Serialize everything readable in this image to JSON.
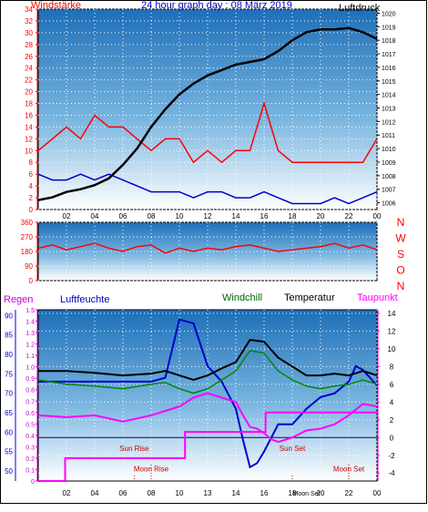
{
  "panels": {
    "wind": {
      "title": "24 hour graph day : 08 März 2019",
      "left_label": "Windstärke",
      "right_label": "Luftdruck",
      "left_ticks": [
        "0",
        "2",
        "4",
        "6",
        "8",
        "10",
        "12",
        "14",
        "16",
        "18",
        "20",
        "22",
        "24",
        "26",
        "28",
        "30",
        "32",
        "34"
      ],
      "right_ticks": [
        "1006",
        "1007",
        "1008",
        "1009",
        "1010",
        "1011",
        "1012",
        "1013",
        "1014",
        "1015",
        "1016",
        "1017",
        "1018",
        "1019",
        "1020"
      ],
      "x_ticks": [
        "02",
        "04",
        "06",
        "08",
        "10",
        "12",
        "14",
        "16",
        "18",
        "20",
        "22",
        "00"
      ]
    },
    "direction": {
      "left_ticks": [
        "0",
        "90",
        "180",
        "270",
        "360"
      ],
      "right_letters": [
        "N",
        "W",
        "S",
        "O",
        "N"
      ]
    },
    "bottom": {
      "labels": {
        "regen": "Regen",
        "luftfeuchte": "Luftfeuchte",
        "windchill": "Windchill",
        "temperatur": "Temperatur",
        "taupunkt": "Taupunkt"
      },
      "regen_ticks": [
        "0",
        "0.1",
        "0.2",
        "0.3",
        "0.4",
        "0.5",
        "0.6",
        "0.7",
        "0.8",
        "0.9",
        "1.0",
        "1.1",
        "1.2",
        "1.3",
        "1.4",
        "1.5"
      ],
      "humidity_ticks": [
        "50",
        "55",
        "60",
        "65",
        "70",
        "75",
        "80",
        "85",
        "90"
      ],
      "temp_ticks": [
        "-4",
        "-2",
        "0",
        "2",
        "4",
        "6",
        "8",
        "10",
        "12",
        "14"
      ],
      "x_ticks": [
        "02",
        "04",
        "06",
        "08",
        "10",
        "13",
        "14",
        "16",
        "18",
        "20",
        "22",
        "00"
      ],
      "annotations": {
        "sun_rise": "Sun Rise",
        "sun_set": "Sun Set",
        "moon_rise": "Moon Rise",
        "moon_set": "Moon Set",
        "moon_set_short": "Moon Set"
      }
    }
  },
  "chart_data": [
    {
      "type": "line",
      "series": [
        {
          "name": "Windstärke",
          "color": "#ff0000",
          "x": [
            0,
            1,
            2,
            3,
            4,
            5,
            6,
            7,
            8,
            9,
            10,
            11,
            12,
            13,
            14,
            15,
            16,
            17,
            18,
            19,
            20,
            21,
            22,
            23,
            24
          ],
          "values": [
            10,
            12,
            14,
            12,
            16,
            14,
            14,
            12,
            10,
            12,
            12,
            8,
            10,
            8,
            10,
            10,
            18,
            10,
            8,
            8,
            8,
            8,
            8,
            8,
            12
          ]
        },
        {
          "name": "Windböen",
          "color": "#0000cc",
          "x": [
            0,
            1,
            2,
            3,
            4,
            5,
            6,
            7,
            8,
            9,
            10,
            11,
            12,
            13,
            14,
            15,
            16,
            17,
            18,
            19,
            20,
            21,
            22,
            23,
            24
          ],
          "values": [
            6,
            5,
            5,
            6,
            5,
            6,
            5,
            4,
            3,
            3,
            3,
            2,
            3,
            3,
            2,
            2,
            3,
            2,
            1,
            1,
            1,
            2,
            1,
            2,
            3
          ]
        },
        {
          "name": "Luftdruck",
          "color": "#000000",
          "x": [
            0,
            1,
            2,
            3,
            4,
            5,
            6,
            7,
            8,
            9,
            10,
            11,
            12,
            13,
            14,
            15,
            16,
            17,
            18,
            19,
            20,
            21,
            22,
            23,
            24
          ],
          "values": [
            1006.2,
            1006.4,
            1006.8,
            1007.0,
            1007.3,
            1007.8,
            1008.8,
            1010.0,
            1011.6,
            1012.9,
            1014.0,
            1014.8,
            1015.4,
            1015.8,
            1016.2,
            1016.4,
            1016.6,
            1017.2,
            1018.0,
            1018.6,
            1018.8,
            1018.8,
            1018.9,
            1018.6,
            1018.1
          ]
        }
      ],
      "y_left": {
        "label": "Windstärke",
        "ylim": [
          0,
          34
        ]
      },
      "y_right": {
        "label": "Luftdruck",
        "ylim": [
          1005.5,
          1020.3
        ]
      },
      "xlim": [
        0,
        24
      ]
    },
    {
      "type": "line",
      "series": [
        {
          "name": "Windrichtung",
          "color": "#ff0000",
          "x": [
            0,
            1,
            2,
            3,
            4,
            5,
            6,
            7,
            8,
            9,
            10,
            11,
            12,
            13,
            14,
            15,
            16,
            17,
            18,
            19,
            20,
            21,
            22,
            23,
            24
          ],
          "values": [
            200,
            220,
            190,
            210,
            230,
            200,
            180,
            210,
            220,
            170,
            200,
            180,
            200,
            190,
            210,
            220,
            200,
            180,
            190,
            200,
            210,
            230,
            200,
            220,
            190
          ]
        }
      ],
      "ylim": [
        0,
        360
      ],
      "xlim": [
        0,
        24
      ]
    },
    {
      "type": "line",
      "series": [
        {
          "name": "Luftfeuchte",
          "color": "#0000cc",
          "axis": "humidity",
          "x": [
            0,
            1,
            2,
            3,
            4,
            5,
            6,
            7,
            8,
            9,
            10,
            11,
            12,
            13,
            14,
            14.5,
            15,
            15.5,
            16,
            17,
            18,
            19,
            20,
            21,
            22,
            22.5,
            23,
            24
          ],
          "values": [
            73,
            73,
            73,
            73,
            73,
            73,
            73,
            73,
            73,
            74,
            89,
            88,
            77,
            73,
            66,
            58,
            51,
            52,
            55,
            62,
            62,
            66,
            69,
            70,
            73,
            77,
            76,
            72
          ]
        },
        {
          "name": "Temperatur",
          "color": "#000000",
          "axis": "temp",
          "x": [
            0,
            2,
            4,
            6,
            8,
            9,
            10,
            11,
            12,
            13,
            14,
            15,
            16,
            17,
            18,
            19,
            20,
            21,
            22,
            23,
            24
          ],
          "values": [
            7.5,
            7.5,
            7.3,
            7.0,
            7.2,
            7.5,
            7.0,
            6.5,
            7.0,
            7.8,
            8.5,
            11,
            10.8,
            9.0,
            8.0,
            7.0,
            7.0,
            7.2,
            7.0,
            7.5,
            7.0
          ]
        },
        {
          "name": "Windchill",
          "color": "#008800",
          "axis": "temp",
          "x": [
            0,
            2,
            4,
            6,
            8,
            9,
            10,
            11,
            12,
            13,
            14,
            15,
            16,
            17,
            18,
            19,
            20,
            21,
            22,
            23,
            24
          ],
          "values": [
            6.5,
            6.0,
            5.8,
            5.5,
            6.0,
            6.2,
            5.5,
            5.0,
            5.5,
            6.5,
            7.5,
            9.8,
            9.5,
            7.5,
            6.5,
            5.8,
            5.5,
            5.8,
            6.0,
            6.5,
            6.0
          ]
        },
        {
          "name": "Taupunkt",
          "color": "#ff00ff",
          "axis": "temp",
          "x": [
            0,
            2,
            4,
            6,
            8,
            9,
            10,
            11,
            12,
            13,
            14,
            14.5,
            15,
            15.5,
            16,
            16.5,
            17,
            18,
            19,
            20,
            21,
            22,
            23,
            24
          ],
          "values": [
            2.5,
            2.3,
            2.5,
            1.8,
            2.5,
            3.0,
            3.5,
            4.5,
            5.0,
            4.5,
            4.0,
            2.5,
            1.2,
            1.0,
            0.5,
            -0.2,
            -0.5,
            0.0,
            0.8,
            1.0,
            1.5,
            2.5,
            3.8,
            3.5
          ]
        },
        {
          "name": "Regen",
          "color": "#ff00ff",
          "axis": "regen",
          "x": [
            0,
            1.9,
            1.9,
            10.4,
            10.4,
            16.1,
            16.1,
            24
          ],
          "values": [
            0,
            0,
            0.2,
            0.2,
            0.43,
            0.43,
            0.6,
            0.6
          ]
        }
      ],
      "y_regen": {
        "label": "Regen",
        "ylim": [
          0,
          1.5
        ]
      },
      "y_humidity": {
        "label": "Luftfeuchte",
        "ylim": [
          47.4,
          91.5
        ]
      },
      "y_temp": {
        "label": "Temperatur",
        "ylim": [
          -4.9,
          14.4
        ]
      },
      "xlim": [
        0,
        24
      ],
      "events": {
        "sun_rise": 6.8,
        "sun_set": 18.0,
        "moon_rise": 8.0,
        "moon_set": 22.0
      }
    }
  ]
}
